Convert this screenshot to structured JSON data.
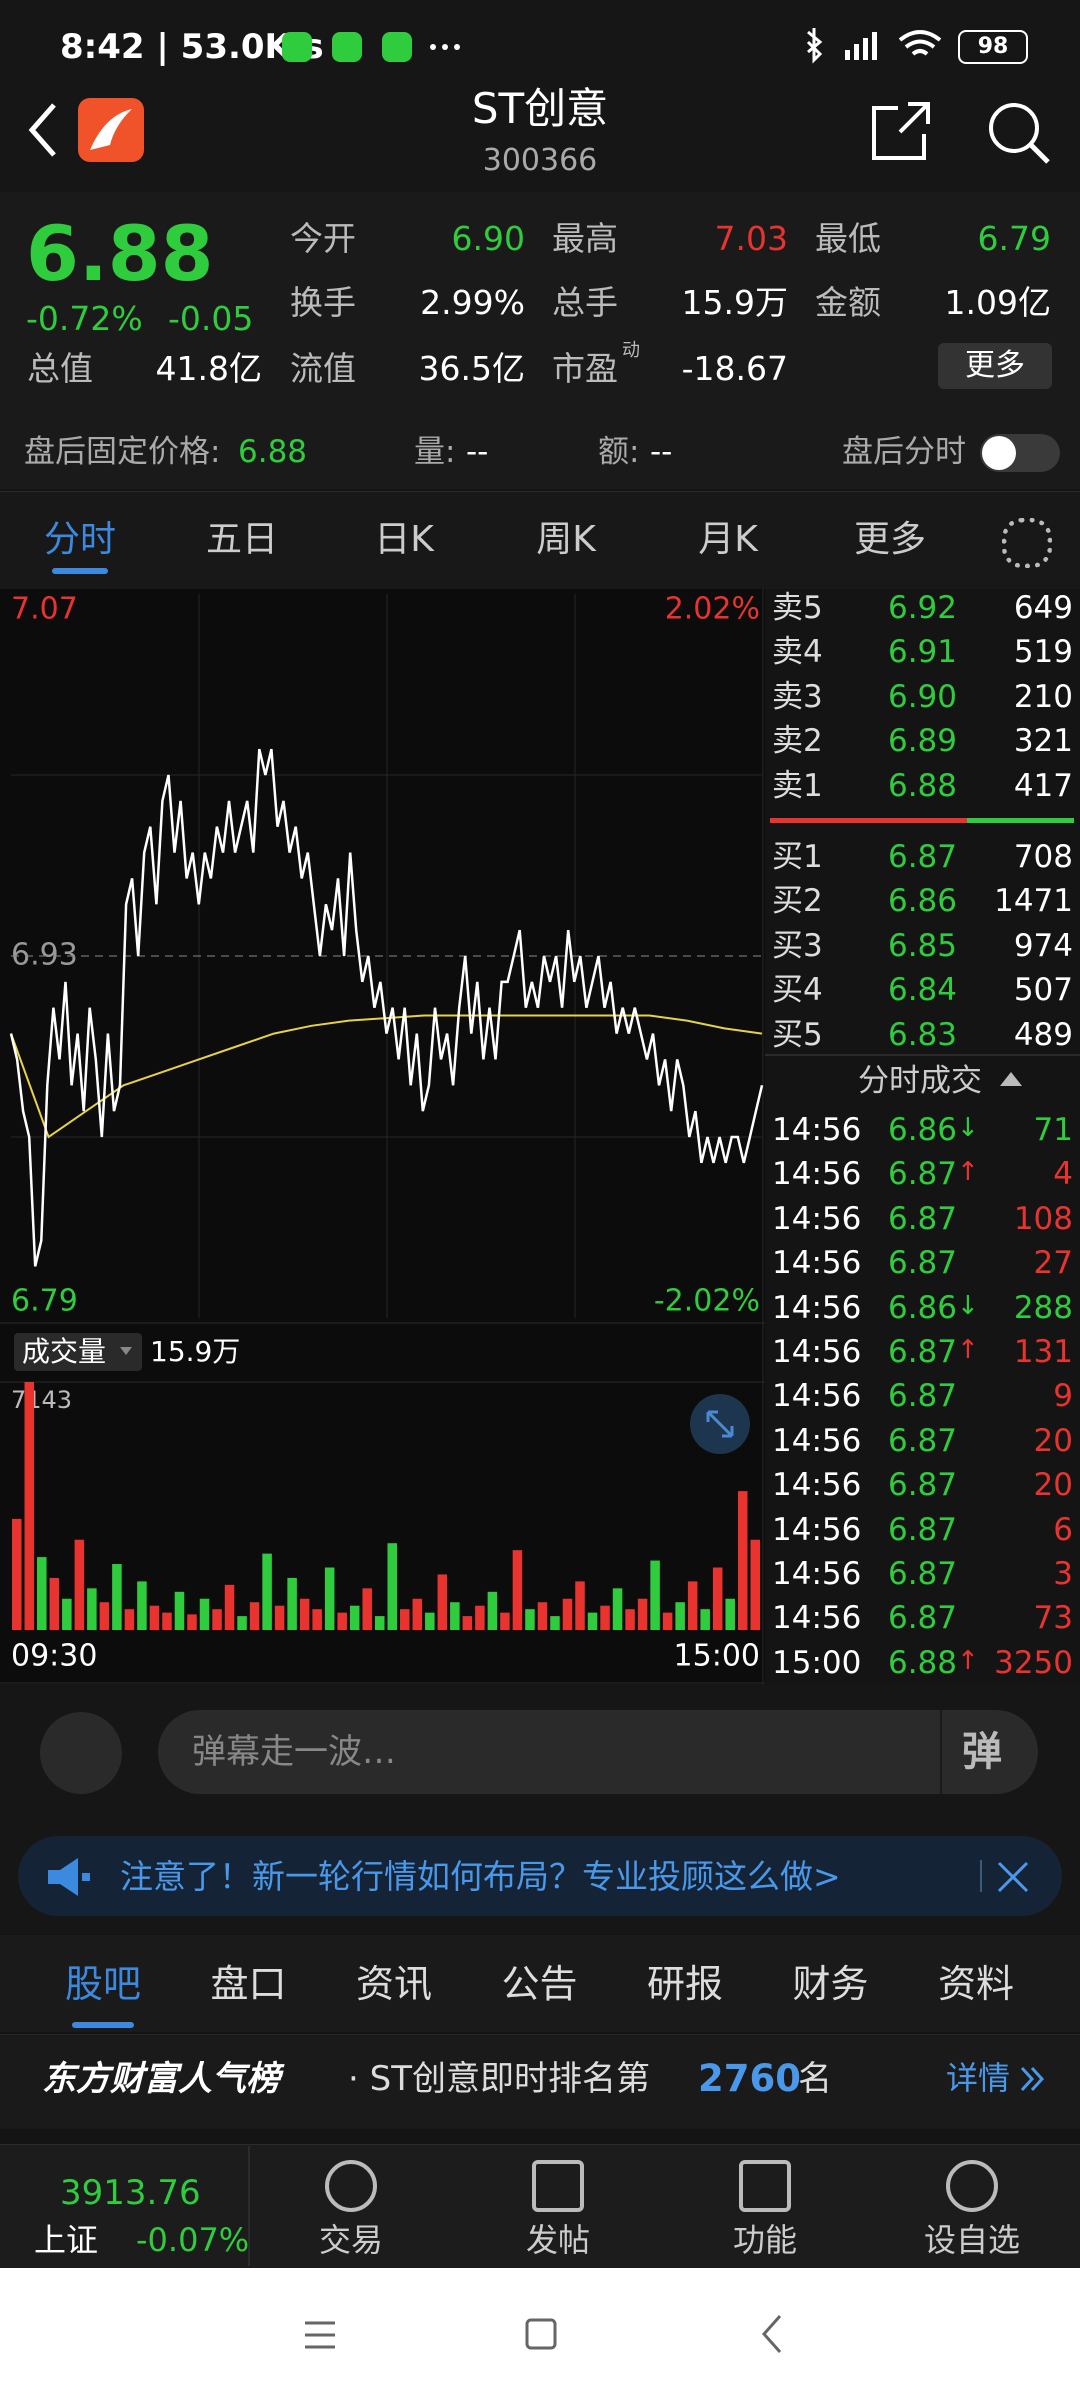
{
  "status": {
    "time": "8:42 | 53.0K/s",
    "battery": "98"
  },
  "header": {
    "name": "ST创意",
    "code": "300366"
  },
  "quote": {
    "price": "6.88",
    "change_pct": "-0.72%",
    "change": "-0.05",
    "more": "更多",
    "rows": [
      [
        {
          "label": "今开",
          "value": "6.90",
          "color": "#2fcc3d"
        },
        {
          "label": "最高",
          "value": "7.03",
          "color": "#e8332f"
        },
        {
          "label": "最低",
          "value": "6.79",
          "color": "#2fcc3d"
        }
      ],
      [
        {
          "label": "换手",
          "value": "2.99%",
          "color": "#ffffff"
        },
        {
          "label": "总手",
          "value": "15.9万",
          "color": "#ffffff"
        },
        {
          "label": "金额",
          "value": "1.09亿",
          "color": "#ffffff"
        }
      ],
      [
        {
          "label": "总值",
          "value": "41.8亿",
          "color": "#ffffff"
        },
        {
          "label": "流值",
          "value": "36.5亿",
          "color": "#ffffff"
        },
        {
          "label": "市盈",
          "sup": "动",
          "value": "-18.67",
          "color": "#ffffff"
        }
      ]
    ]
  },
  "after_hours": {
    "label": "盘后固定价格:",
    "price": "6.88",
    "volume_label": "量:",
    "volume": "--",
    "amount_label": "额:",
    "amount": "--",
    "toggle": "盘后分时"
  },
  "tabs": [
    "分时",
    "五日",
    "日K",
    "周K",
    "月K",
    "更多"
  ],
  "chart": {
    "ylim": [
      6.79,
      7.07
    ],
    "yticks": [
      7.07,
      6.93,
      6.79
    ],
    "pct_labels": [
      "2.02%",
      "-2.02%"
    ],
    "price_color": "#ffffff",
    "avg_color": "#e6d24a",
    "price": [
      6.9,
      6.89,
      6.87,
      6.86,
      6.81,
      6.82,
      6.88,
      6.91,
      6.89,
      6.92,
      6.88,
      6.9,
      6.87,
      6.91,
      6.89,
      6.86,
      6.9,
      6.87,
      6.88,
      6.95,
      6.96,
      6.93,
      6.97,
      6.98,
      6.95,
      6.99,
      7.0,
      6.97,
      6.99,
      6.96,
      6.97,
      6.95,
      6.97,
      6.96,
      6.98,
      6.97,
      6.99,
      6.97,
      6.98,
      6.99,
      6.97,
      7.01,
      7.0,
      7.01,
      6.98,
      6.99,
      6.97,
      6.98,
      6.96,
      6.97,
      6.95,
      6.93,
      6.95,
      6.94,
      6.96,
      6.93,
      6.97,
      6.94,
      6.92,
      6.93,
      6.91,
      6.92,
      6.9,
      6.91,
      6.89,
      6.91,
      6.88,
      6.9,
      6.87,
      6.88,
      6.91,
      6.89,
      6.9,
      6.88,
      6.91,
      6.93,
      6.9,
      6.92,
      6.89,
      6.91,
      6.89,
      6.92,
      6.92,
      6.93,
      6.94,
      6.91,
      6.92,
      6.91,
      6.93,
      6.92,
      6.93,
      6.91,
      6.94,
      6.92,
      6.93,
      6.91,
      6.92,
      6.93,
      6.91,
      6.92,
      6.9,
      6.91,
      6.9,
      6.91,
      6.9,
      6.89,
      6.9,
      6.88,
      6.89,
      6.87,
      6.89,
      6.88,
      6.86,
      6.87,
      6.85,
      6.86,
      6.85,
      6.86,
      6.85,
      6.86,
      6.86,
      6.85,
      6.86,
      6.87,
      6.88
    ],
    "avg": [
      6.9,
      6.86,
      6.87,
      6.88,
      6.885,
      6.89,
      6.895,
      6.9,
      6.903,
      6.905,
      6.906,
      6.907,
      6.907,
      6.907,
      6.907,
      6.907,
      6.907,
      6.907,
      6.905,
      6.902,
      6.9
    ],
    "volume_label": "成交量",
    "volume_total": "15.9万",
    "volume_max_label": "7143",
    "vlim": [
      0,
      7143
    ],
    "volume": [
      3200,
      7143,
      2100,
      1500,
      900,
      2600,
      1200,
      800,
      1900,
      600,
      1400,
      700,
      500,
      1100,
      450,
      900,
      600,
      1300,
      400,
      800,
      2200,
      700,
      1500,
      900,
      600,
      1800,
      500,
      700,
      1200,
      400,
      2500,
      600,
      900,
      500,
      1600,
      800,
      400,
      700,
      1100,
      500,
      2300,
      600,
      800,
      400,
      900,
      1400,
      500,
      700,
      1200,
      600,
      900,
      2000,
      500,
      800,
      1400,
      600,
      1800,
      900,
      4000,
      2600
    ],
    "volume_direction": [
      "up",
      "up",
      "down",
      "up",
      "down",
      "up",
      "down",
      "up",
      "down",
      "up",
      "down",
      "up",
      "up",
      "down",
      "up",
      "down",
      "up",
      "up",
      "down",
      "up",
      "down",
      "up",
      "down",
      "up",
      "up",
      "down",
      "up",
      "down",
      "up",
      "down",
      "down",
      "up",
      "up",
      "down",
      "up",
      "down",
      "up",
      "up",
      "down",
      "up",
      "up",
      "down",
      "up",
      "down",
      "up",
      "up",
      "down",
      "up",
      "down",
      "up",
      "up",
      "down",
      "up",
      "down",
      "up",
      "down",
      "up",
      "down",
      "up",
      "up"
    ],
    "x_labels": [
      "09:30",
      "15:00"
    ]
  },
  "book": {
    "sells": [
      {
        "label": "卖5",
        "price": "6.92",
        "volume": "649"
      },
      {
        "label": "卖4",
        "price": "6.91",
        "volume": "519"
      },
      {
        "label": "卖3",
        "price": "6.90",
        "volume": "210"
      },
      {
        "label": "卖2",
        "price": "6.89",
        "volume": "321"
      },
      {
        "label": "卖1",
        "price": "6.88",
        "volume": "417"
      }
    ],
    "buys": [
      {
        "label": "买1",
        "price": "6.87",
        "volume": "708"
      },
      {
        "label": "买2",
        "price": "6.86",
        "volume": "1471"
      },
      {
        "label": "买3",
        "price": "6.85",
        "volume": "974"
      },
      {
        "label": "买4",
        "price": "6.84",
        "volume": "507"
      },
      {
        "label": "买5",
        "price": "6.83",
        "volume": "489"
      }
    ]
  },
  "trades": {
    "title": "分时成交",
    "rows": [
      {
        "time": "14:56",
        "price": "6.86",
        "arrow": "↓",
        "volume": "71",
        "side": "sell"
      },
      {
        "time": "14:56",
        "price": "6.87",
        "arrow": "↑",
        "volume": "4",
        "side": "buy"
      },
      {
        "time": "14:56",
        "price": "6.87",
        "volume": "108",
        "side": "buy"
      },
      {
        "time": "14:56",
        "price": "6.87",
        "volume": "27",
        "side": "buy"
      },
      {
        "time": "14:56",
        "price": "6.86",
        "arrow": "↓",
        "volume": "288",
        "side": "sell"
      },
      {
        "time": "14:56",
        "price": "6.87",
        "arrow": "↑",
        "volume": "131",
        "side": "buy"
      },
      {
        "time": "14:56",
        "price": "6.87",
        "volume": "9",
        "side": "buy"
      },
      {
        "time": "14:56",
        "price": "6.87",
        "volume": "20",
        "side": "buy"
      },
      {
        "time": "14:56",
        "price": "6.87",
        "volume": "20",
        "side": "buy"
      },
      {
        "time": "14:56",
        "price": "6.87",
        "volume": "6",
        "side": "buy"
      },
      {
        "time": "14:56",
        "price": "6.87",
        "volume": "3",
        "side": "buy"
      },
      {
        "time": "14:56",
        "price": "6.87",
        "volume": "73",
        "side": "buy"
      },
      {
        "time": "15:00",
        "price": "6.88",
        "arrow": "↑",
        "volume": "3250",
        "side": "buy"
      }
    ]
  },
  "comment": {
    "placeholder": "弹幕走一波…",
    "button": "弹"
  },
  "banner": {
    "text": "注意了！新一轮行情如何布局？专业投顾这么做>"
  },
  "subtabs": [
    "股吧",
    "盘口",
    "资讯",
    "公告",
    "研报",
    "财务",
    "资料"
  ],
  "rank": {
    "brand": "东方财富人气榜",
    "text": "· ST创意即时排名第",
    "number": "2760",
    "suffix": "名",
    "link": "详情"
  },
  "bottom": {
    "index_value": "3913.76",
    "index_name": "上证",
    "index_change": "-0.07%",
    "nav": [
      "交易",
      "发帖",
      "功能",
      "设自选"
    ]
  }
}
